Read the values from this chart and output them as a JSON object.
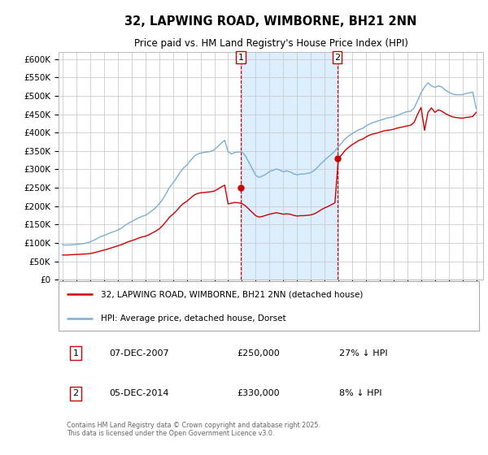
{
  "title": "32, LAPWING ROAD, WIMBORNE, BH21 2NN",
  "subtitle": "Price paid vs. HM Land Registry's House Price Index (HPI)",
  "ylim": [
    0,
    620000
  ],
  "yticks": [
    0,
    50000,
    100000,
    150000,
    200000,
    250000,
    300000,
    350000,
    400000,
    450000,
    500000,
    550000,
    600000
  ],
  "legend_label_red": "32, LAPWING ROAD, WIMBORNE, BH21 2NN (detached house)",
  "legend_label_blue": "HPI: Average price, detached house, Dorset",
  "annotation1_label": "1",
  "annotation1_date": "07-DEC-2007",
  "annotation1_price": "£250,000",
  "annotation1_hpi": "27% ↓ HPI",
  "annotation2_label": "2",
  "annotation2_date": "05-DEC-2014",
  "annotation2_price": "£330,000",
  "annotation2_hpi": "8% ↓ HPI",
  "sale1_x": 2007.92,
  "sale1_y": 250000,
  "sale2_x": 2014.92,
  "sale2_y": 330000,
  "grid_color": "#cccccc",
  "red_color": "#cc0000",
  "blue_color": "#7aaed6",
  "shade_color": "#ddeeff",
  "copyright_text": "Contains HM Land Registry data © Crown copyright and database right 2025.\nThis data is licensed under the Open Government Licence v3.0.",
  "xlim_left": 1994.7,
  "xlim_right": 2025.5,
  "hpi_data_x": [
    1995.0,
    1995.25,
    1995.5,
    1995.75,
    1996.0,
    1996.25,
    1996.5,
    1996.75,
    1997.0,
    1997.25,
    1997.5,
    1997.75,
    1998.0,
    1998.25,
    1998.5,
    1998.75,
    1999.0,
    1999.25,
    1999.5,
    1999.75,
    2000.0,
    2000.25,
    2000.5,
    2000.75,
    2001.0,
    2001.25,
    2001.5,
    2001.75,
    2002.0,
    2002.25,
    2002.5,
    2002.75,
    2003.0,
    2003.25,
    2003.5,
    2003.75,
    2004.0,
    2004.25,
    2004.5,
    2004.75,
    2005.0,
    2005.25,
    2005.5,
    2005.75,
    2006.0,
    2006.25,
    2006.5,
    2006.75,
    2007.0,
    2007.25,
    2007.5,
    2007.75,
    2008.0,
    2008.25,
    2008.5,
    2008.75,
    2009.0,
    2009.25,
    2009.5,
    2009.75,
    2010.0,
    2010.25,
    2010.5,
    2010.75,
    2011.0,
    2011.25,
    2011.5,
    2011.75,
    2012.0,
    2012.25,
    2012.5,
    2012.75,
    2013.0,
    2013.25,
    2013.5,
    2013.75,
    2014.0,
    2014.25,
    2014.5,
    2014.75,
    2015.0,
    2015.25,
    2015.5,
    2015.75,
    2016.0,
    2016.25,
    2016.5,
    2016.75,
    2017.0,
    2017.25,
    2017.5,
    2017.75,
    2018.0,
    2018.25,
    2018.5,
    2018.75,
    2019.0,
    2019.25,
    2019.5,
    2019.75,
    2020.0,
    2020.25,
    2020.5,
    2020.75,
    2021.0,
    2021.25,
    2021.5,
    2021.75,
    2022.0,
    2022.25,
    2022.5,
    2022.75,
    2023.0,
    2023.25,
    2023.5,
    2023.75,
    2024.0,
    2024.25,
    2024.5,
    2024.75,
    2025.0
  ],
  "hpi_data_y": [
    95000,
    94000,
    94500,
    95000,
    96000,
    97000,
    98000,
    100000,
    103000,
    107000,
    112000,
    117000,
    120000,
    124000,
    128000,
    131000,
    135000,
    140000,
    147000,
    153000,
    158000,
    163000,
    168000,
    172000,
    175000,
    181000,
    188000,
    196000,
    206000,
    218000,
    234000,
    251000,
    263000,
    276000,
    291000,
    303000,
    311000,
    323000,
    334000,
    341000,
    344000,
    346000,
    347000,
    349000,
    353000,
    362000,
    371000,
    379000,
    348000,
    342000,
    346000,
    347000,
    347000,
    337000,
    320000,
    302000,
    284000,
    278000,
    282000,
    287000,
    294000,
    297000,
    301000,
    298000,
    293000,
    296000,
    293000,
    288000,
    285000,
    287000,
    287000,
    289000,
    291000,
    297000,
    306000,
    316000,
    325000,
    333000,
    341000,
    350000,
    361000,
    372000,
    383000,
    391000,
    397000,
    403000,
    408000,
    411000,
    418000,
    423000,
    427000,
    430000,
    433000,
    436000,
    439000,
    441000,
    443000,
    446000,
    450000,
    454000,
    457000,
    458000,
    467000,
    487000,
    508000,
    524000,
    535000,
    527000,
    523000,
    527000,
    524000,
    516000,
    510000,
    505000,
    503000,
    503000,
    503000,
    506000,
    508000,
    510000,
    465000
  ],
  "red_data_x": [
    1995.0,
    1995.25,
    1995.5,
    1995.75,
    1996.0,
    1996.25,
    1996.5,
    1996.75,
    1997.0,
    1997.25,
    1997.5,
    1997.75,
    1998.0,
    1998.25,
    1998.5,
    1998.75,
    1999.0,
    1999.25,
    1999.5,
    1999.75,
    2000.0,
    2000.25,
    2000.5,
    2000.75,
    2001.0,
    2001.25,
    2001.5,
    2001.75,
    2002.0,
    2002.25,
    2002.5,
    2002.75,
    2003.0,
    2003.25,
    2003.5,
    2003.75,
    2004.0,
    2004.25,
    2004.5,
    2004.75,
    2005.0,
    2005.25,
    2005.5,
    2005.75,
    2006.0,
    2006.25,
    2006.5,
    2006.75,
    2007.0,
    2007.25,
    2007.5,
    2007.75,
    2008.0,
    2008.25,
    2008.5,
    2008.75,
    2009.0,
    2009.25,
    2009.5,
    2009.75,
    2010.0,
    2010.25,
    2010.5,
    2010.75,
    2011.0,
    2011.25,
    2011.5,
    2011.75,
    2012.0,
    2012.25,
    2012.5,
    2012.75,
    2013.0,
    2013.25,
    2013.5,
    2013.75,
    2014.0,
    2014.25,
    2014.5,
    2014.75,
    2015.0,
    2015.25,
    2015.5,
    2015.75,
    2016.0,
    2016.25,
    2016.5,
    2016.75,
    2017.0,
    2017.25,
    2017.5,
    2017.75,
    2018.0,
    2018.25,
    2018.5,
    2018.75,
    2019.0,
    2019.25,
    2019.5,
    2019.75,
    2020.0,
    2020.25,
    2020.5,
    2020.75,
    2021.0,
    2021.25,
    2021.5,
    2021.75,
    2022.0,
    2022.25,
    2022.5,
    2022.75,
    2023.0,
    2023.25,
    2023.5,
    2023.75,
    2024.0,
    2024.25,
    2024.5,
    2024.75,
    2025.0
  ],
  "red_data_y": [
    67000,
    67000,
    67500,
    68000,
    68500,
    69000,
    69500,
    70000,
    71000,
    73000,
    75500,
    78000,
    80500,
    83000,
    86000,
    89000,
    92000,
    95000,
    99000,
    103000,
    106000,
    109000,
    113000,
    116000,
    118000,
    122000,
    127000,
    132000,
    138000,
    147000,
    158000,
    170000,
    178000,
    187000,
    198000,
    207000,
    213000,
    221000,
    229000,
    234000,
    236000,
    237000,
    238000,
    239000,
    241000,
    246000,
    252000,
    257000,
    206000,
    208000,
    210000,
    209000,
    207000,
    201000,
    192000,
    183000,
    174000,
    170000,
    172000,
    175000,
    178000,
    180000,
    182000,
    180000,
    178000,
    179000,
    178000,
    175000,
    173000,
    174000,
    174000,
    175000,
    176000,
    179000,
    184000,
    190000,
    195000,
    199000,
    204000,
    209000,
    330000,
    340000,
    352000,
    360000,
    367000,
    373000,
    379000,
    382000,
    388000,
    393000,
    396000,
    398000,
    401000,
    404000,
    406000,
    407000,
    409000,
    412000,
    414000,
    416000,
    418000,
    420000,
    428000,
    450000,
    468000,
    406000,
    455000,
    467000,
    455000,
    462000,
    458000,
    452000,
    447000,
    443000,
    441000,
    440000,
    439000,
    441000,
    442000,
    444000,
    455000
  ]
}
